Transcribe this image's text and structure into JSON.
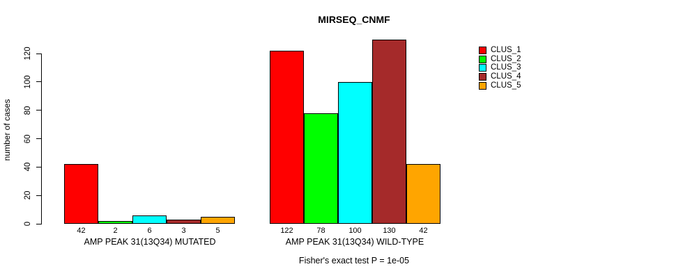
{
  "chart_data": {
    "type": "bar",
    "title": "MIRSEQ_CNMF",
    "ylabel": "number of cases",
    "xlabel": "",
    "ylim": [
      0,
      130
    ],
    "yticks": [
      0,
      20,
      40,
      60,
      80,
      100,
      120
    ],
    "grid": false,
    "legend_position": "right",
    "bar_value_labels": true,
    "categories": [
      "AMP PEAK 31(13Q34) MUTATED",
      "AMP PEAK 31(13Q34) WILD-TYPE"
    ],
    "series": [
      {
        "name": "CLUS_1",
        "color": "#FF0000",
        "values": [
          42,
          122
        ]
      },
      {
        "name": "CLUS_2",
        "color": "#00FF00",
        "values": [
          2,
          78
        ]
      },
      {
        "name": "CLUS_3",
        "color": "#00FFFF",
        "values": [
          6,
          100
        ]
      },
      {
        "name": "CLUS_4",
        "color": "#A52A2A",
        "values": [
          3,
          130
        ]
      },
      {
        "name": "CLUS_5",
        "color": "#FFA500",
        "values": [
          5,
          42
        ]
      }
    ],
    "footnote": "Fisher's exact test P = 1e-05"
  }
}
